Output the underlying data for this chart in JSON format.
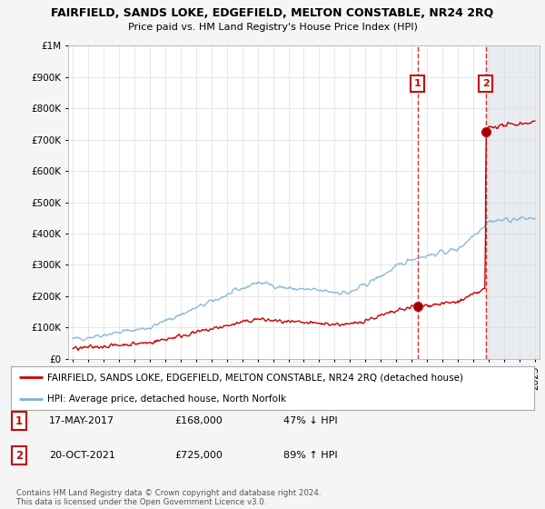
{
  "title": "FAIRFIELD, SANDS LOKE, EDGEFIELD, MELTON CONSTABLE, NR24 2RQ",
  "subtitle": "Price paid vs. HM Land Registry's House Price Index (HPI)",
  "legend_line1": "FAIRFIELD, SANDS LOKE, EDGEFIELD, MELTON CONSTABLE, NR24 2RQ (detached house)",
  "legend_line2": "HPI: Average price, detached house, North Norfolk",
  "footnote": "Contains HM Land Registry data © Crown copyright and database right 2024.\nThis data is licensed under the Open Government Licence v3.0.",
  "transaction1_date": "17-MAY-2017",
  "transaction1_price": "£168,000",
  "transaction1_hpi": "47% ↓ HPI",
  "transaction1_year": 2017.37,
  "transaction1_value": 168000,
  "transaction2_date": "20-OCT-2021",
  "transaction2_price": "£725,000",
  "transaction2_hpi": "89% ↑ HPI",
  "transaction2_year": 2021.8,
  "transaction2_value": 725000,
  "red_line_color": "#cc0000",
  "blue_line_color": "#7fb3d3",
  "shade_color": "#e8ecf0",
  "dashed_line_color": "#cc0000",
  "background_color": "#f5f5f5",
  "plot_bg_color": "#ffffff",
  "ylim_max": 1000000,
  "xlim_start": 1994.7,
  "xlim_end": 2025.3
}
